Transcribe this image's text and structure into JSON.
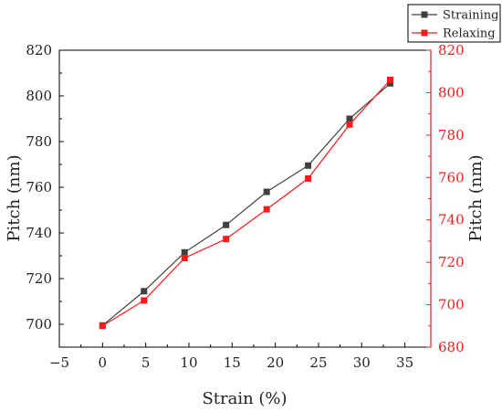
{
  "chart_data": {
    "type": "line",
    "xlabel": "Strain (%)",
    "ylabel_left": "Pitch (nm)",
    "ylabel_right": "Pitch (nm)",
    "xlim": [
      -5,
      38
    ],
    "x_ticks": [
      -5,
      0,
      5,
      10,
      15,
      20,
      25,
      30,
      35
    ],
    "x_tick_labels": [
      "−5",
      "0",
      "5",
      "10",
      "15",
      "20",
      "25",
      "30",
      "35"
    ],
    "ylim_left": [
      690,
      820
    ],
    "y_ticks_left": [
      700,
      720,
      740,
      760,
      780,
      800,
      820
    ],
    "ylim_right": [
      680,
      820
    ],
    "y_ticks_right": [
      680,
      700,
      720,
      740,
      760,
      780,
      800,
      820
    ],
    "legend_position": "top-right",
    "series": [
      {
        "name": "Straining",
        "axis": "left",
        "color": "#404040",
        "marker": "square",
        "x": [
          0,
          4.8,
          9.5,
          14.3,
          19.0,
          23.8,
          28.6,
          33.3
        ],
        "y": [
          699.5,
          714.5,
          731.5,
          743.5,
          758,
          769.5,
          790,
          805.5
        ]
      },
      {
        "name": "Relaxing",
        "axis": "right",
        "color": "#ff1a1a",
        "marker": "square",
        "x": [
          0,
          4.8,
          9.5,
          14.3,
          19.0,
          23.8,
          28.6,
          33.3
        ],
        "y": [
          690,
          702,
          722,
          731,
          745,
          759.5,
          785,
          806
        ]
      }
    ]
  }
}
